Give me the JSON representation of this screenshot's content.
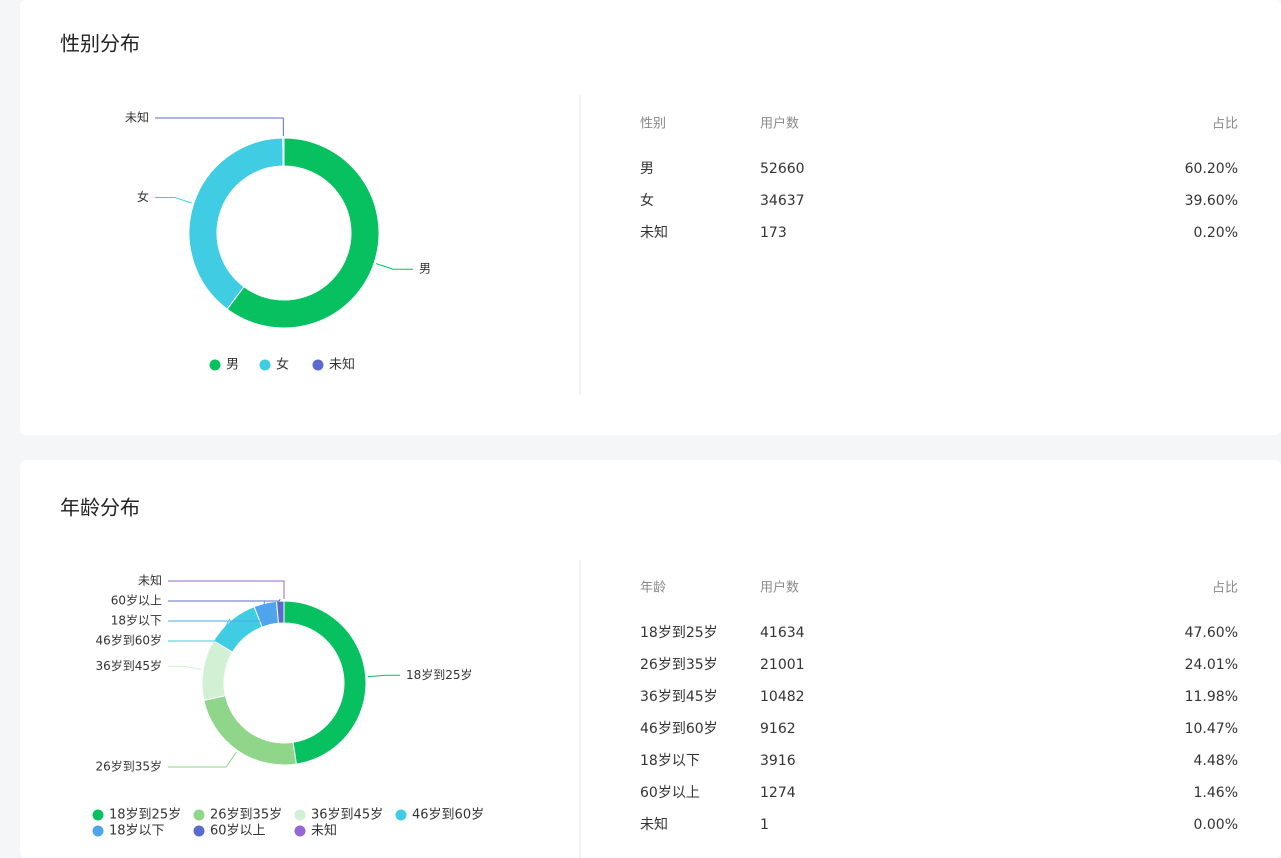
{
  "chart_data": [
    {
      "type": "pie",
      "title": "性别分布",
      "categories": [
        "男",
        "女",
        "未知"
      ],
      "values": [
        52660,
        34637,
        173
      ],
      "colors": [
        "#07c160",
        "#40cde3",
        "#5b6bcd"
      ]
    },
    {
      "type": "pie",
      "title": "年龄分布",
      "categories": [
        "18岁到25岁",
        "26岁到35岁",
        "36岁到45岁",
        "46岁到60岁",
        "18岁以下",
        "60岁以上",
        "未知"
      ],
      "values": [
        41634,
        21001,
        10482,
        9162,
        3916,
        1274,
        1
      ],
      "colors": [
        "#07c160",
        "#8fd68a",
        "#d1f0d4",
        "#40cde3",
        "#4ea5ec",
        "#5b6bcd",
        "#9466d6"
      ]
    }
  ],
  "tables": [
    {
      "headers": [
        "性别",
        "用户数",
        "占比"
      ],
      "rows": [
        [
          "男",
          52660,
          "60.20%"
        ],
        [
          "女",
          34637,
          "39.60%"
        ],
        [
          "未知",
          173,
          "0.20%"
        ]
      ]
    },
    {
      "headers": [
        "年龄",
        "用户数",
        "占比"
      ],
      "rows": [
        [
          "18岁到25岁",
          41634,
          "47.60%"
        ],
        [
          "26岁到35岁",
          21001,
          "24.01%"
        ],
        [
          "36岁到45岁",
          10482,
          "11.98%"
        ],
        [
          "46岁到60岁",
          9162,
          "10.47%"
        ],
        [
          "18岁以下",
          3916,
          "4.48%"
        ],
        [
          "60岁以上",
          1274,
          "1.46%"
        ],
        [
          "未知",
          1,
          "0.00%"
        ]
      ]
    }
  ]
}
